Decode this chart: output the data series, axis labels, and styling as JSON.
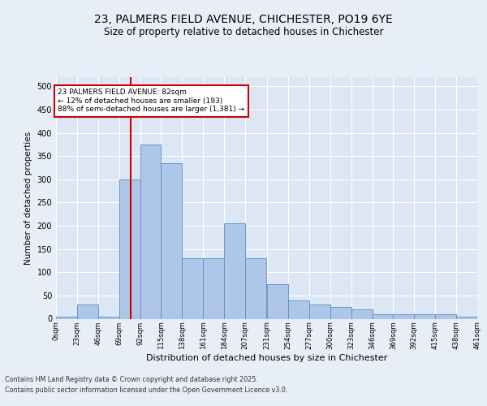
{
  "title_line1": "23, PALMERS FIELD AVENUE, CHICHESTER, PO19 6YE",
  "title_line2": "Size of property relative to detached houses in Chichester",
  "xlabel": "Distribution of detached houses by size in Chichester",
  "ylabel": "Number of detached properties",
  "bin_edges": [
    0,
    23,
    46,
    69,
    92,
    115,
    138,
    161,
    184,
    207,
    231,
    254,
    277,
    300,
    323,
    346,
    369,
    392,
    415,
    438,
    461
  ],
  "bar_heights": [
    5,
    30,
    5,
    300,
    375,
    335,
    130,
    130,
    205,
    130,
    75,
    40,
    30,
    25,
    20,
    10,
    10,
    10,
    10,
    5
  ],
  "bar_color": "#aec6e8",
  "bar_edge_color": "#5a8fbf",
  "property_size": 82,
  "vline_color": "#cc0000",
  "annotation_text": "23 PALMERS FIELD AVENUE: 82sqm\n← 12% of detached houses are smaller (193)\n88% of semi-detached houses are larger (1,381) →",
  "annotation_box_color": "#ffffff",
  "annotation_box_edge_color": "#cc0000",
  "ylim": [
    0,
    520
  ],
  "yticks": [
    0,
    50,
    100,
    150,
    200,
    250,
    300,
    350,
    400,
    450,
    500
  ],
  "background_color": "#e8eef8",
  "plot_bg_color": "#dce6f4",
  "grid_color": "#ffffff",
  "footer_line1": "Contains HM Land Registry data © Crown copyright and database right 2025.",
  "footer_line2": "Contains public sector information licensed under the Open Government Licence v3.0.",
  "tick_labels": [
    "0sqm",
    "23sqm",
    "46sqm",
    "69sqm",
    "92sqm",
    "115sqm",
    "138sqm",
    "161sqm",
    "184sqm",
    "207sqm",
    "231sqm",
    "254sqm",
    "277sqm",
    "300sqm",
    "323sqm",
    "346sqm",
    "369sqm",
    "392sqm",
    "415sqm",
    "438sqm",
    "461sqm"
  ]
}
